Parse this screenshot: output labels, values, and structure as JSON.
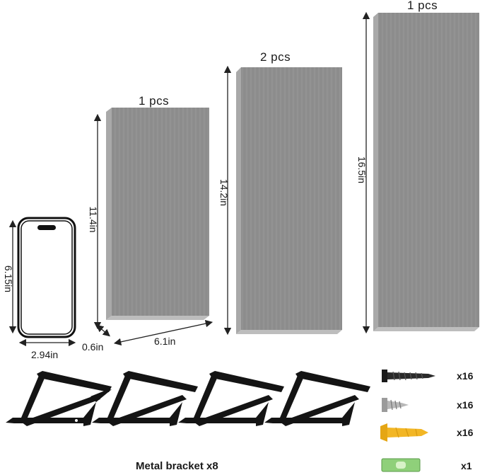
{
  "panels": [
    {
      "quantity": "1 pcs",
      "height": "11.4in"
    },
    {
      "quantity": "2 pcs",
      "height": "14.2in"
    },
    {
      "quantity": "1 pcs",
      "height": "16.5in"
    }
  ],
  "panel_width": "6.1in",
  "panel_thickness": "0.6in",
  "phone": {
    "height": "6.15in",
    "width": "2.94in"
  },
  "brackets": {
    "caption": "Metal bracket x8",
    "count_shown": 4
  },
  "hardware": [
    {
      "icon": "black-wood-screw-icon",
      "count": "x16"
    },
    {
      "icon": "silver-screw-icon",
      "count": "x16"
    },
    {
      "icon": "yellow-wall-anchor-icon",
      "count": "x16"
    },
    {
      "icon": "bubble-level-icon",
      "count": "x1"
    }
  ],
  "colors": {
    "panel_face": "#8e8e8e",
    "panel_edge": "#a8a8a8",
    "bracket": "#111111",
    "anchor": "#f2b625",
    "level": "#8fd07a"
  }
}
